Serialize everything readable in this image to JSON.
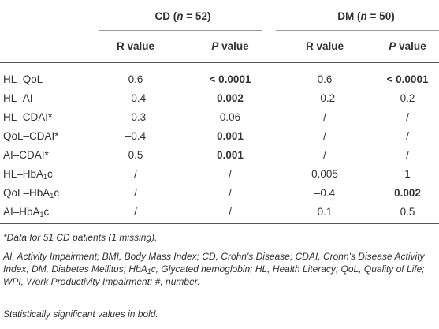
{
  "table": {
    "groups": [
      [
        "CD (",
        "n",
        " = 52)"
      ],
      [
        "DM (",
        "n",
        " = 50)"
      ]
    ],
    "columns": [
      [
        "R value"
      ],
      [
        "P",
        " value"
      ],
      [
        "R value"
      ],
      [
        "P",
        " value"
      ]
    ],
    "rows": [
      {
        "label": [
          "HL–QoL"
        ],
        "cells": [
          "0.6",
          "< 0.0001",
          "0.6",
          "< 0.0001"
        ],
        "bold": [
          false,
          true,
          false,
          true
        ]
      },
      {
        "label": [
          "HL–AI"
        ],
        "cells": [
          "–0.4",
          "0.002",
          "–0.2",
          "0.2"
        ],
        "bold": [
          false,
          true,
          false,
          false
        ]
      },
      {
        "label": [
          "HL–CDAI*"
        ],
        "cells": [
          "–0.3",
          "0.06",
          "/",
          "/"
        ],
        "bold": [
          false,
          false,
          false,
          false
        ]
      },
      {
        "label": [
          "QoL–CDAI*"
        ],
        "cells": [
          "–0.4",
          "0.001",
          "/",
          "/"
        ],
        "bold": [
          false,
          true,
          false,
          false
        ]
      },
      {
        "label": [
          "AI–CDAI*"
        ],
        "cells": [
          "0.5",
          "0.001",
          "/",
          "/"
        ],
        "bold": [
          false,
          true,
          false,
          false
        ]
      },
      {
        "label": [
          "HL–HbA",
          "1",
          "c"
        ],
        "cells": [
          "/",
          "/",
          "0.005",
          "1"
        ],
        "bold": [
          false,
          false,
          false,
          false
        ]
      },
      {
        "label": [
          "QoL–HbA",
          "1",
          "c"
        ],
        "cells": [
          "/",
          "/",
          "–0.4",
          "0.002"
        ],
        "bold": [
          false,
          false,
          false,
          true
        ]
      },
      {
        "label": [
          "AI–HbA",
          "1",
          "c"
        ],
        "cells": [
          "/",
          "/",
          "0.1",
          "0.5"
        ],
        "bold": [
          false,
          false,
          false,
          false
        ]
      }
    ]
  },
  "footnotes": [
    [
      "*Data for 51 CD patients (1 missing)."
    ],
    [
      "AI, Activity Impairment; BMI, Body Mass Index; CD, Crohn's Disease; CDAI, Crohn's Disease Activity Index; DM, Diabetes Mellitus; HbA",
      "1",
      "c, Glycated hemoglobin; HL, Health Literacy; QoL, Quality of Life; WPI, Work Productivity Impairment; #, number."
    ],
    [
      "Statistically significant values in bold."
    ]
  ]
}
